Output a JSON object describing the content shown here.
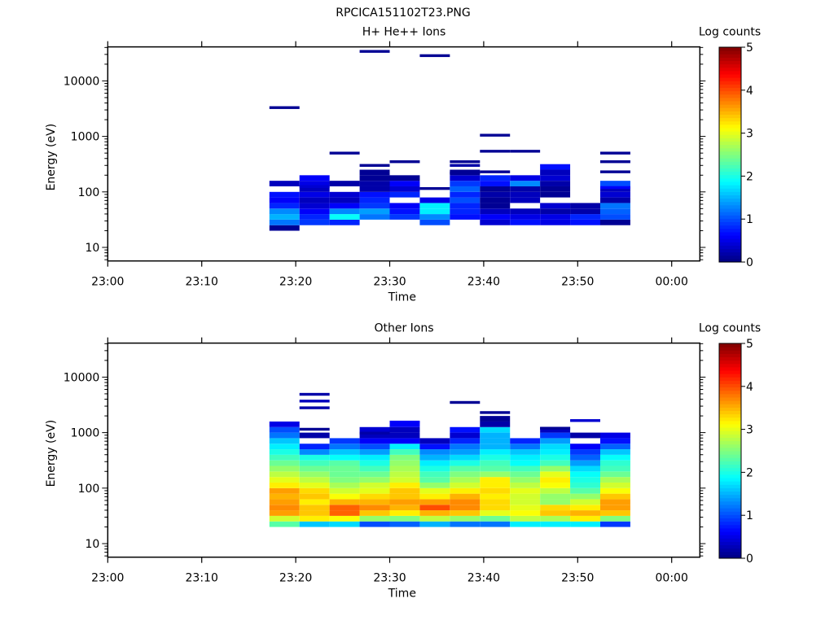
{
  "title": "RPCICA151102T23.PNG",
  "colormap": "jet",
  "chart_data": [
    {
      "type": "heatmap",
      "title": "H+ He++ Ions",
      "xlabel": "Time",
      "ylabel": "Energy (eV)",
      "colorbar_label": "Log counts",
      "colorbar_range": [
        0,
        5
      ],
      "colorbar_ticks": [
        "0",
        "1",
        "2",
        "3",
        "4",
        "5"
      ],
      "xlim": [
        "23:00",
        "00:03"
      ],
      "x_ticks": [
        "23:00",
        "23:10",
        "23:20",
        "23:30",
        "23:40",
        "23:50",
        "00:00"
      ],
      "y_scale": "log",
      "ylim": [
        5.7,
        41000
      ],
      "y_ticks": [
        "10",
        "100",
        "1000",
        "10000"
      ],
      "grid": false,
      "bin_log10_energy_start": 1.3,
      "bin_log10_energy_step": 0.1,
      "columns": [
        {
          "start": "23:17:12",
          "end": "23:20:24",
          "values": [
            0.1,
            1.2,
            1.5,
            1.3,
            0.8,
            0.6,
            0.7,
            null,
            0.3
          ],
          "lines": [
            [
              3300,
              0.1
            ]
          ]
        },
        {
          "start": "23:20:24",
          "end": "23:23:36",
          "values": [
            null,
            0.9,
            0.8,
            0.6,
            0.4,
            0.3,
            0.5,
            0.3,
            0.5,
            0.6
          ],
          "lines": [
            [
              125,
              0.4
            ]
          ]
        },
        {
          "start": "23:23:36",
          "end": "23:26:48",
          "values": [
            null,
            0.8,
            1.9,
            1.3,
            0.6,
            0.3,
            0.4,
            null,
            0.2
          ],
          "lines": [
            [
              500,
              0.1
            ],
            [
              145,
              0.2
            ]
          ]
        },
        {
          "start": "23:26:48",
          "end": "23:30:00",
          "values": [
            null,
            null,
            1.2,
            1.4,
            0.9,
            0.8,
            0.7,
            0.2,
            0.2,
            0.1,
            0.1
          ],
          "lines": [
            [
              34000,
              0.1
            ],
            [
              300,
              0.1
            ]
          ]
        },
        {
          "start": "23:30:00",
          "end": "23:33:12",
          "values": [
            null,
            null,
            0.9,
            0.7,
            0.6,
            null,
            0.8,
            0.4,
            0.6,
            0.1
          ],
          "lines": [
            [
              350,
              0.1
            ]
          ]
        },
        {
          "start": "23:33:12",
          "end": "23:36:24",
          "values": [
            null,
            1.0,
            1.3,
            1.8,
            1.8,
            0.5
          ],
          "lines": [
            [
              28500,
              0.1
            ],
            [
              115,
              0.1
            ]
          ]
        },
        {
          "start": "23:36:24",
          "end": "23:39:36",
          "values": [
            null,
            null,
            0.7,
            0.8,
            0.8,
            1.0,
            0.8,
            1.1,
            0.9,
            0.4,
            0.1
          ],
          "lines": [
            [
              350,
              0.1
            ],
            [
              300,
              0.2
            ],
            [
              220,
              0.1
            ]
          ]
        },
        {
          "start": "23:39:36",
          "end": "23:42:48",
          "values": [
            null,
            0.4,
            0.6,
            0.3,
            0.1,
            0.1,
            0.2,
            0.1,
            0.7,
            0.8
          ],
          "lines": [
            [
              1050,
              0.1
            ],
            [
              540,
              0.1
            ],
            [
              230,
              0.1
            ]
          ]
        },
        {
          "start": "23:42:48",
          "end": "23:46:00",
          "values": [
            null,
            0.7,
            0.5,
            0.3,
            null,
            0.3,
            0.3,
            0.2,
            1.3,
            0.5
          ],
          "lines": [
            [
              540,
              0.1
            ]
          ]
        },
        {
          "start": "23:46:00",
          "end": "23:49:12",
          "values": [
            null,
            0.5,
            0.5,
            0.2,
            0.4,
            null,
            0.1,
            0.1,
            0.2,
            0.4,
            0.3,
            0.7
          ]
        },
        {
          "start": "23:49:12",
          "end": "23:52:24",
          "values": [
            null,
            0.7,
            0.8,
            0.2,
            0.2
          ]
        },
        {
          "start": "23:52:24",
          "end": "23:55:36",
          "values": [
            null,
            0.1,
            1.0,
            1.1,
            1.2,
            0.2,
            0.4,
            0.3,
            1.0
          ],
          "lines": [
            [
              500,
              0.1
            ],
            [
              350,
              0.1
            ],
            [
              230,
              0.1
            ],
            [
              120,
              0.6
            ]
          ]
        }
      ]
    },
    {
      "type": "heatmap",
      "title": "Other Ions",
      "xlabel": "Time",
      "ylabel": "Energy (eV)",
      "colorbar_label": "Log counts",
      "colorbar_range": [
        0,
        5
      ],
      "colorbar_ticks": [
        "0",
        "1",
        "2",
        "3",
        "4",
        "5"
      ],
      "xlim": [
        "23:00",
        "00:03"
      ],
      "x_ticks": [
        "23:00",
        "23:10",
        "23:20",
        "23:30",
        "23:40",
        "23:50",
        "00:00"
      ],
      "y_scale": "log",
      "ylim": [
        5.7,
        41000
      ],
      "y_ticks": [
        "10",
        "100",
        "1000",
        "10000"
      ],
      "grid": false,
      "bin_log10_energy_start": 1.3,
      "bin_log10_energy_step": 0.1,
      "columns": [
        {
          "start": "23:17:12",
          "end": "23:20:24",
          "values": [
            2.3,
            2.9,
            3.6,
            3.7,
            3.6,
            3.5,
            3.6,
            3.2,
            3.0,
            2.8,
            2.6,
            2.4,
            2.2,
            2.0,
            1.8,
            1.6,
            1.2,
            1.0,
            0.5
          ]
        },
        {
          "start": "23:20:24",
          "end": "23:23:36",
          "values": [
            1.6,
            3.2,
            3.4,
            3.4,
            3.2,
            3.4,
            3.3,
            3.0,
            2.8,
            2.6,
            2.4,
            2.2,
            2.0,
            1.3,
            0.8,
            null,
            0.2
          ],
          "lines": [
            [
              4900,
              0.2
            ],
            [
              3700,
              0.3
            ],
            [
              2800,
              0.2
            ],
            [
              1150,
              0.1
            ]
          ]
        },
        {
          "start": "23:23:36",
          "end": "23:26:48",
          "values": [
            1.7,
            3.1,
            3.9,
            3.9,
            3.5,
            3.1,
            2.9,
            2.7,
            2.5,
            2.4,
            2.4,
            2.3,
            1.9,
            1.6,
            1.2,
            0.9
          ]
        },
        {
          "start": "23:26:48",
          "end": "23:30:00",
          "values": [
            1.0,
            2.6,
            3.4,
            3.7,
            3.5,
            3.3,
            3.0,
            2.9,
            2.6,
            2.4,
            2.2,
            2.0,
            1.8,
            1.4,
            1.0,
            0.6,
            0.3,
            0.4
          ],
          "lines": [
            [
              980,
              0.2
            ]
          ]
        },
        {
          "start": "23:30:00",
          "end": "23:33:12",
          "values": [
            1.1,
            2.5,
            3.2,
            3.5,
            3.6,
            3.4,
            3.4,
            3.2,
            2.9,
            2.8,
            2.7,
            2.6,
            2.5,
            2.2,
            1.8,
            0.6,
            0.3,
            0.3,
            0.6
          ],
          "lines": [
            [
              1550,
              0.6
            ]
          ]
        },
        {
          "start": "23:33:12",
          "end": "23:36:24",
          "values": [
            1.5,
            2.8,
            3.5,
            4.0,
            3.6,
            3.2,
            3.0,
            2.6,
            2.3,
            2.2,
            2.0,
            1.8,
            1.5,
            1.3,
            0.7,
            0.3
          ]
        },
        {
          "start": "23:36:24",
          "end": "23:39:36",
          "values": [
            1.2,
            2.6,
            3.4,
            3.7,
            3.7,
            3.5,
            3.2,
            2.9,
            2.7,
            2.5,
            2.3,
            2.0,
            1.7,
            1.4,
            1.2,
            0.8,
            0.4,
            0.7
          ],
          "lines": [
            [
              3500,
              0.1
            ]
          ]
        },
        {
          "start": "23:39:36",
          "end": "23:42:48",
          "values": [
            1.2,
            2.4,
            3.0,
            3.3,
            3.3,
            3.2,
            3.3,
            3.2,
            3.2,
            2.6,
            2.3,
            2.2,
            2.0,
            1.8,
            1.5,
            1.5,
            1.5,
            1.7,
            0.2,
            0.1
          ],
          "lines": [
            [
              2300,
              0.1
            ]
          ]
        },
        {
          "start": "23:42:48",
          "end": "23:46:00",
          "values": [
            1.8,
            2.8,
            3.1,
            3.0,
            2.9,
            2.9,
            3.0,
            2.8,
            2.6,
            2.4,
            2.2,
            1.9,
            1.8,
            1.6,
            1.2,
            0.8
          ]
        },
        {
          "start": "23:46:00",
          "end": "23:49:12",
          "values": [
            1.8,
            2.7,
            3.4,
            3.3,
            2.6,
            2.6,
            2.8,
            3.1,
            3.2,
            3.0,
            2.6,
            2.2,
            2.0,
            1.8,
            1.7,
            1.4,
            0.9,
            0.3
          ],
          "lines": [
            [
              1200,
              0.1
            ]
          ]
        },
        {
          "start": "23:49:12",
          "end": "23:52:24",
          "values": [
            1.8,
            3.2,
            3.5,
            3.2,
            2.9,
            2.6,
            2.3,
            2.1,
            2.0,
            1.9,
            1.7,
            1.4,
            1.1,
            0.9,
            0.6,
            null,
            0.2
          ],
          "lines": [
            [
              1650,
              0.4
            ]
          ]
        },
        {
          "start": "23:52:24",
          "end": "23:55:36",
          "values": [
            0.9,
            2.5,
            3.4,
            3.6,
            3.6,
            3.4,
            3.1,
            2.9,
            2.7,
            2.4,
            2.2,
            2.1,
            1.9,
            1.6,
            1.1,
            0.7,
            0.5
          ]
        }
      ]
    }
  ]
}
